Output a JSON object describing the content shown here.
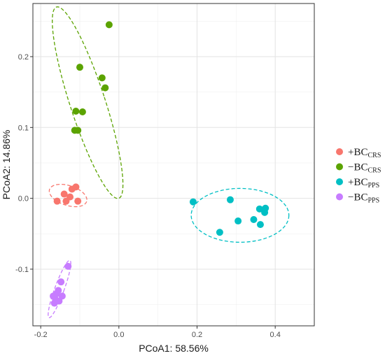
{
  "chart_data": {
    "type": "scatter",
    "xlabel": "PCoA1: 58.56%",
    "ylabel": "PCoA2: 14.86%",
    "xlim": [
      -0.22,
      0.5
    ],
    "ylim": [
      -0.18,
      0.275
    ],
    "x_ticks": [
      -0.2,
      0.0,
      0.2,
      0.4
    ],
    "x_tick_labels": [
      "-0.2",
      "0.0",
      "0.2",
      "0.4"
    ],
    "y_ticks": [
      -0.1,
      0.0,
      0.1,
      0.2
    ],
    "y_tick_labels": [
      "-0.1",
      "0.0",
      "0.1",
      "0.2"
    ],
    "grid": true,
    "legend_position": "right",
    "series": [
      {
        "name": "+BCCRS",
        "legend_main": "+BC",
        "legend_sub": "CRS",
        "color": "#F8766D",
        "points": [
          [
            -0.158,
            -0.004
          ],
          [
            -0.14,
            0.006
          ],
          [
            -0.135,
            -0.004
          ],
          [
            -0.125,
            0.002
          ],
          [
            -0.12,
            0.013
          ],
          [
            -0.11,
            0.016
          ],
          [
            -0.105,
            -0.004
          ]
        ],
        "ellipse": {
          "cx": -0.13,
          "cy": 0.004,
          "rx": 0.05,
          "ry": 0.014,
          "angle_deg": 18
        }
      },
      {
        "name": "-BCCRS",
        "legend_main": "−BC",
        "legend_sub": "CRS",
        "color": "#5BA300",
        "points": [
          [
            -0.025,
            0.245
          ],
          [
            -0.1,
            0.185
          ],
          [
            -0.043,
            0.17
          ],
          [
            -0.035,
            0.156
          ],
          [
            -0.11,
            0.123
          ],
          [
            -0.093,
            0.122
          ],
          [
            -0.113,
            0.096
          ],
          [
            -0.105,
            0.096
          ]
        ],
        "ellipse": {
          "cx": -0.08,
          "cy": 0.135,
          "rx": 0.045,
          "ry": 0.142,
          "angle_deg": -18
        }
      },
      {
        "name": "+BCPPS",
        "legend_main": "+BC",
        "legend_sub": "PPS",
        "color": "#00BFC4",
        "points": [
          [
            0.19,
            -0.005
          ],
          [
            0.285,
            -0.002
          ],
          [
            0.258,
            -0.048
          ],
          [
            0.305,
            -0.032
          ],
          [
            0.345,
            -0.03
          ],
          [
            0.36,
            -0.015
          ],
          [
            0.362,
            -0.037
          ],
          [
            0.375,
            -0.014
          ],
          [
            0.373,
            -0.02
          ]
        ],
        "ellipse": {
          "cx": 0.31,
          "cy": -0.024,
          "rx": 0.125,
          "ry": 0.038,
          "angle_deg": 0
        }
      },
      {
        "name": "-BCPPS",
        "legend_main": "−BC",
        "legend_sub": "PPS",
        "color": "#C77CFF",
        "points": [
          [
            -0.13,
            -0.096
          ],
          [
            -0.148,
            -0.118
          ],
          [
            -0.155,
            -0.13
          ],
          [
            -0.16,
            -0.135
          ],
          [
            -0.145,
            -0.138
          ],
          [
            -0.168,
            -0.138
          ],
          [
            -0.162,
            -0.143
          ],
          [
            -0.153,
            -0.145
          ],
          [
            -0.165,
            -0.148
          ]
        ],
        "ellipse": {
          "cx": -0.152,
          "cy": -0.128,
          "rx": 0.012,
          "ry": 0.043,
          "angle_deg": 20
        }
      }
    ]
  }
}
